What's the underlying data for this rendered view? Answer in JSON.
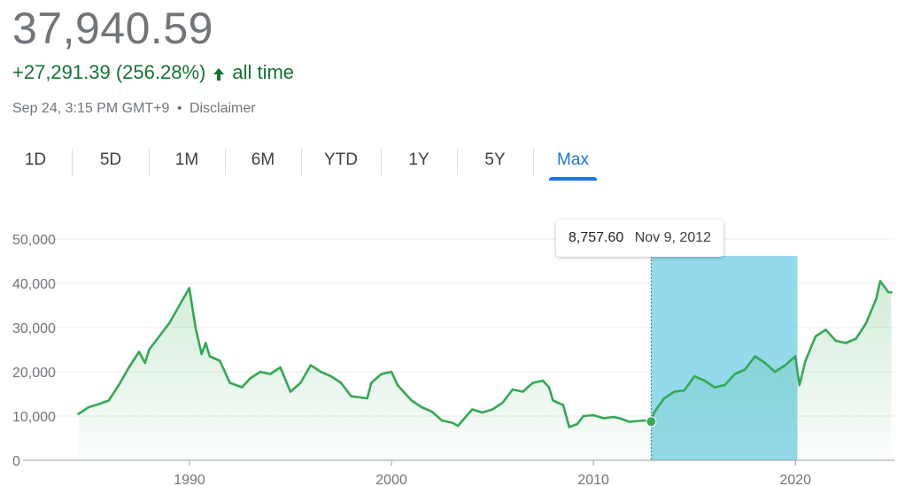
{
  "header": {
    "price": "37,940.59",
    "change": "+27,291.39 (256.28%)",
    "change_period": "all time",
    "timestamp": "Sep 24, 3:15 PM GMT+9",
    "separator": "•",
    "disclaimer": "Disclaimer"
  },
  "tabs": [
    {
      "label": "1D",
      "active": false
    },
    {
      "label": "5D",
      "active": false
    },
    {
      "label": "1M",
      "active": false
    },
    {
      "label": "6M",
      "active": false
    },
    {
      "label": "YTD",
      "active": false
    },
    {
      "label": "1Y",
      "active": false
    },
    {
      "label": "5Y",
      "active": false
    },
    {
      "label": "Max",
      "active": true
    }
  ],
  "colors": {
    "line": "#34a853",
    "positive_text": "#137333",
    "active_tab": "#1a73e8",
    "selection": "#81d4e8",
    "grid": "#ececec"
  },
  "tooltip": {
    "value": "8,757.60",
    "date": "Nov 9, 2012"
  },
  "selection_range": {
    "start_year": 2012.86,
    "end_year": 2020.1
  },
  "chart_data": {
    "type": "area",
    "title": "",
    "xlabel": "",
    "ylabel": "",
    "ylim": [
      0,
      50000
    ],
    "xlim": [
      1984.3,
      2024.9
    ],
    "y_ticks": [
      "0",
      "10,000",
      "20,000",
      "30,000",
      "40,000",
      "50,000"
    ],
    "y_tick_values": [
      0,
      10000,
      20000,
      30000,
      40000,
      50000
    ],
    "x_ticks": [
      "1990",
      "2000",
      "2010",
      "2020"
    ],
    "x_tick_values": [
      1990,
      2000,
      2010,
      2020
    ],
    "grid": true,
    "series": [
      {
        "x": [
          1984.5,
          1985.0,
          1985.5,
          1986.0,
          1986.5,
          1987.0,
          1987.5,
          1987.8,
          1988.0,
          1988.5,
          1989.0,
          1989.5,
          1989.99,
          1990.3,
          1990.6,
          1990.8,
          1991.0,
          1991.5,
          1992.0,
          1992.6,
          1993.0,
          1993.5,
          1994.0,
          1994.5,
          1995.0,
          1995.5,
          1996.0,
          1996.5,
          1997.0,
          1997.5,
          1998.0,
          1998.8,
          1999.0,
          1999.5,
          2000.0,
          2000.3,
          2000.8,
          2001.0,
          2001.5,
          2002.0,
          2002.5,
          2003.0,
          2003.3,
          2003.8,
          2004.0,
          2004.5,
          2005.0,
          2005.5,
          2006.0,
          2006.5,
          2007.0,
          2007.5,
          2007.8,
          2008.0,
          2008.5,
          2008.8,
          2009.2,
          2009.5,
          2010.0,
          2010.5,
          2011.0,
          2011.3,
          2011.8,
          2012.0,
          2012.5,
          2012.86,
          2013.0,
          2013.5,
          2014.0,
          2014.5,
          2015.0,
          2015.5,
          2016.0,
          2016.5,
          2017.0,
          2017.5,
          2018.0,
          2018.5,
          2018.99,
          2019.5,
          2020.0,
          2020.2,
          2020.5,
          2021.0,
          2021.5,
          2022.0,
          2022.5,
          2023.0,
          2023.5,
          2024.0,
          2024.2,
          2024.6,
          2024.75
        ],
        "values": [
          10500,
          12000,
          12700,
          13500,
          17000,
          21000,
          24500,
          22000,
          25000,
          28000,
          31000,
          35000,
          38916,
          30000,
          24000,
          26500,
          23500,
          22500,
          17500,
          16500,
          18500,
          20000,
          19500,
          21000,
          15500,
          17500,
          21500,
          20000,
          19000,
          17500,
          14500,
          14000,
          17500,
          19500,
          20000,
          17000,
          14500,
          13500,
          12000,
          11000,
          9000,
          8500,
          7800,
          10500,
          11500,
          10800,
          11500,
          13000,
          16000,
          15500,
          17500,
          18000,
          16500,
          13500,
          12500,
          7500,
          8200,
          10000,
          10200,
          9500,
          9800,
          9500,
          8700,
          8800,
          9000,
          8757.6,
          10800,
          14000,
          15500,
          15800,
          19000,
          18000,
          16500,
          17000,
          19500,
          20500,
          23500,
          22000,
          20000,
          21500,
          23500,
          17000,
          22500,
          28000,
          29500,
          27000,
          26500,
          27500,
          31000,
          36500,
          40500,
          38000,
          37940
        ]
      }
    ]
  }
}
